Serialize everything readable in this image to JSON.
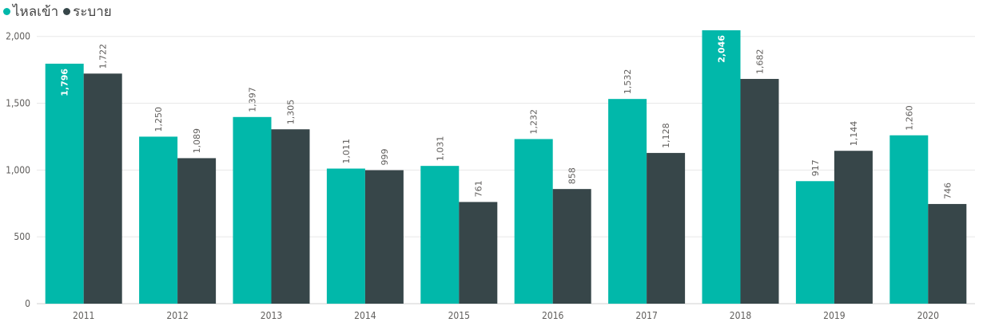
{
  "legend": {
    "inflow_label": "ไหลเข้า",
    "outflow_label": "ระบาย"
  },
  "colors": {
    "inflow": "#01b8aa",
    "outflow": "#374649",
    "grid": "#e8e8e8"
  },
  "chart_data": {
    "type": "bar",
    "categories": [
      "2011",
      "2012",
      "2013",
      "2014",
      "2015",
      "2016",
      "2017",
      "2018",
      "2019",
      "2020"
    ],
    "series": [
      {
        "name": "ไหลเข้า",
        "values": [
          1796,
          1250,
          1397,
          1011,
          1031,
          1232,
          1532,
          2046,
          917,
          1260
        ],
        "labels": [
          "1,796",
          "1,250",
          "1,397",
          "1,011",
          "1,031",
          "1,232",
          "1,532",
          "2,046",
          "917",
          "1,260"
        ]
      },
      {
        "name": "ระบาย",
        "values": [
          1722,
          1089,
          1305,
          999,
          761,
          858,
          1128,
          1682,
          1144,
          746
        ],
        "labels": [
          "1,722",
          "1,089",
          "1,305",
          "999",
          "761",
          "858",
          "1,128",
          "1,682",
          "1,144",
          "746"
        ]
      }
    ],
    "yticks": [
      0,
      500,
      1000,
      1500,
      2000
    ],
    "ytick_labels": [
      "0",
      "500",
      "1,000",
      "1,500",
      "2,000"
    ],
    "ylim": [
      0,
      2046
    ],
    "grid": true,
    "legend_position": "top-left"
  }
}
